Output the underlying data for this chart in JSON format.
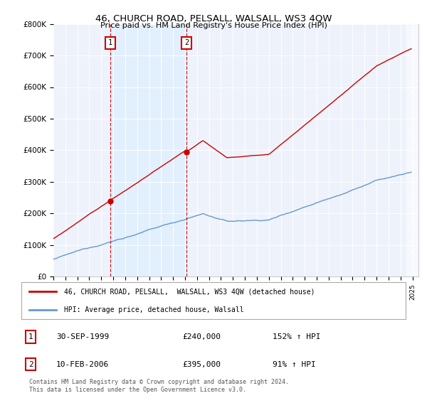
{
  "title": "46, CHURCH ROAD, PELSALL, WALSALL, WS3 4QW",
  "subtitle": "Price paid vs. HM Land Registry's House Price Index (HPI)",
  "ylabel_ticks": [
    "£0",
    "£100K",
    "£200K",
    "£300K",
    "£400K",
    "£500K",
    "£600K",
    "£700K",
    "£800K"
  ],
  "ytick_vals": [
    0,
    100000,
    200000,
    300000,
    400000,
    500000,
    600000,
    700000,
    800000
  ],
  "ylim": [
    0,
    800000
  ],
  "xlim_start": 1995.0,
  "xlim_end": 2025.5,
  "legend_line1": "46, CHURCH ROAD, PELSALL,  WALSALL, WS3 4QW (detached house)",
  "legend_line2": "HPI: Average price, detached house, Walsall",
  "transaction1_date": "30-SEP-1999",
  "transaction1_price": "£240,000",
  "transaction1_hpi": "152% ↑ HPI",
  "transaction2_date": "10-FEB-2006",
  "transaction2_price": "£395,000",
  "transaction2_hpi": "91% ↑ HPI",
  "footer": "Contains HM Land Registry data © Crown copyright and database right 2024.\nThis data is licensed under the Open Government Licence v3.0.",
  "red_color": "#cc0000",
  "blue_color": "#6699cc",
  "shade_color": "#ddeeff",
  "vline1_x": 1999.75,
  "vline2_x": 2006.12,
  "sale1_y": 240000,
  "sale2_y": 395000,
  "background_color": "#ffffff",
  "plot_bg_color": "#eef2fb"
}
